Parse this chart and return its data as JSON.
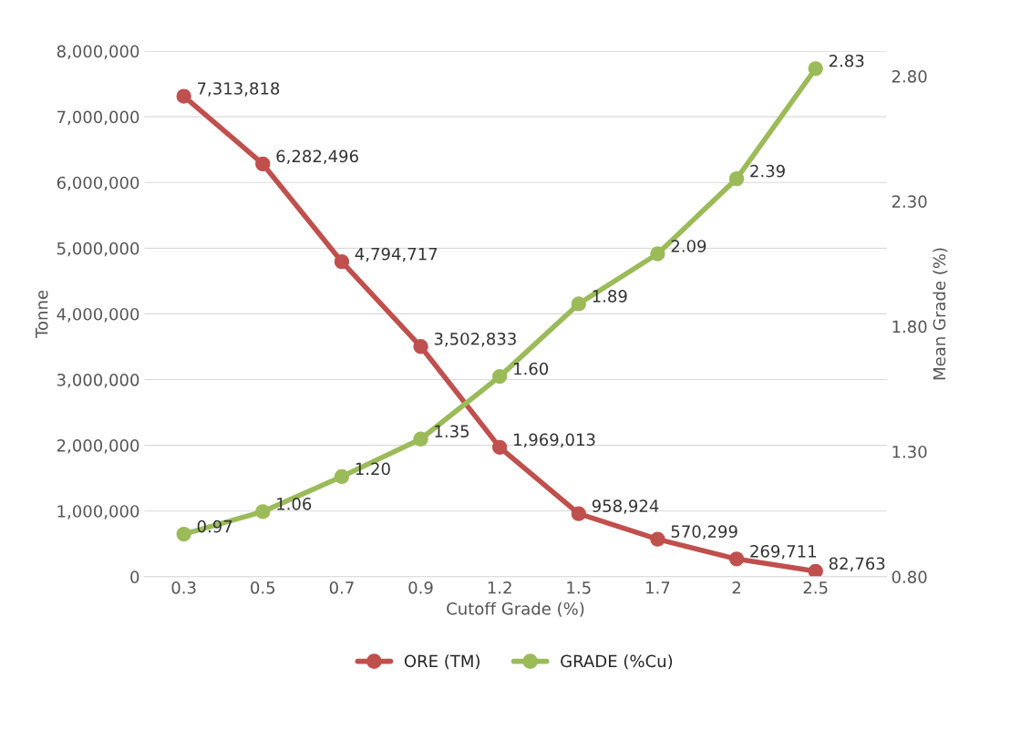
{
  "chart_data": {
    "type": "line",
    "xlabel": "Cutoff Grade (%)",
    "ylabel": "Tonne",
    "y2label": "Mean Grade (%)",
    "categories": [
      "0.3",
      "0.5",
      "0.7",
      "0.9",
      "1.2",
      "1.5",
      "1.7",
      "2",
      "2.5"
    ],
    "series": [
      {
        "name": "ORE (TM)",
        "color": "#c0504d",
        "values": [
          7313818,
          6282496,
          4794717,
          3502833,
          1969013,
          958924,
          570299,
          269711,
          82763
        ],
        "value_labels": [
          "7,313,818",
          "6,282,496",
          "4,794,717",
          "3,502,833",
          "1,969,013",
          "958,924",
          "570,299",
          "269,711",
          "82,763"
        ]
      },
      {
        "name": "GRADE (%Cu)",
        "color": "#9bbb59",
        "axis": "y2",
        "values": [
          0.97,
          1.06,
          1.2,
          1.35,
          1.6,
          1.89,
          2.09,
          2.39,
          2.83
        ],
        "value_labels": [
          "0.97",
          "1.06",
          "1.20",
          "1.35",
          "1.60",
          "1.89",
          "2.09",
          "2.39",
          "2.83"
        ]
      }
    ],
    "ylim": [
      0,
      8000000
    ],
    "yticks": [
      {
        "value": 0,
        "label": "0"
      },
      {
        "value": 1000000,
        "label": "1,000,000"
      },
      {
        "value": 2000000,
        "label": "2,000,000"
      },
      {
        "value": 3000000,
        "label": "3,000,000"
      },
      {
        "value": 4000000,
        "label": "4,000,000"
      },
      {
        "value": 5000000,
        "label": "5,000,000"
      },
      {
        "value": 6000000,
        "label": "6,000,000"
      },
      {
        "value": 7000000,
        "label": "7,000,000"
      },
      {
        "value": 8000000,
        "label": "8,000,000"
      }
    ],
    "y2lim": [
      0.8,
      2.9
    ],
    "y2ticks": [
      {
        "value": 0.8,
        "label": "0.80"
      },
      {
        "value": 1.3,
        "label": "1.30"
      },
      {
        "value": 1.8,
        "label": "1.80"
      },
      {
        "value": 2.3,
        "label": "2.30"
      },
      {
        "value": 2.8,
        "label": "2.80"
      }
    ],
    "grid": "y",
    "legend": "bottom",
    "marker": "circle",
    "line_style": "solid"
  }
}
